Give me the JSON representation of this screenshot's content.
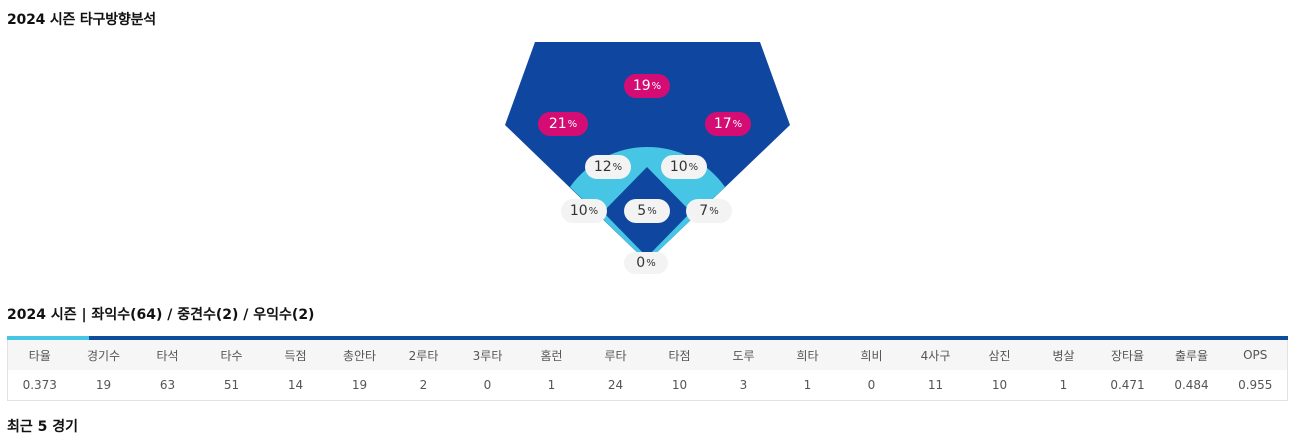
{
  "section_title": "2024 시즌 타구방향분석",
  "field": {
    "colors": {
      "outfield": "#0f47a0",
      "infield_ring": "#46c6e4",
      "infield": "#0f47a0",
      "outer_pill": "#d40c74",
      "inner_pill": "#f3f3f3"
    },
    "zones": [
      {
        "id": "center-field",
        "value": "19",
        "unit": "%"
      },
      {
        "id": "left-field",
        "value": "21",
        "unit": "%"
      },
      {
        "id": "right-field",
        "value": "17",
        "unit": "%"
      },
      {
        "id": "short-left",
        "value": "12",
        "unit": "%"
      },
      {
        "id": "short-right",
        "value": "10",
        "unit": "%"
      },
      {
        "id": "third-base",
        "value": "10",
        "unit": "%"
      },
      {
        "id": "pitcher",
        "value": "5",
        "unit": "%"
      },
      {
        "id": "first-base",
        "value": "7",
        "unit": "%"
      },
      {
        "id": "catcher",
        "value": "0",
        "unit": "%"
      }
    ]
  },
  "stats_title": "2024 시즌 | 좌익수(64) / 중견수(2) / 우익수(2)",
  "stats": {
    "headers": [
      "타율",
      "경기수",
      "타석",
      "타수",
      "득점",
      "총안타",
      "2루타",
      "3루타",
      "홈런",
      "루타",
      "타점",
      "도루",
      "희타",
      "희비",
      "4사구",
      "삼진",
      "병살",
      "장타율",
      "출루율",
      "OPS"
    ],
    "values": [
      "0.373",
      "19",
      "63",
      "51",
      "14",
      "19",
      "2",
      "0",
      "1",
      "24",
      "10",
      "3",
      "1",
      "0",
      "11",
      "10",
      "1",
      "0.471",
      "0.484",
      "0.955"
    ]
  },
  "recent_title": "최근 5 경기"
}
